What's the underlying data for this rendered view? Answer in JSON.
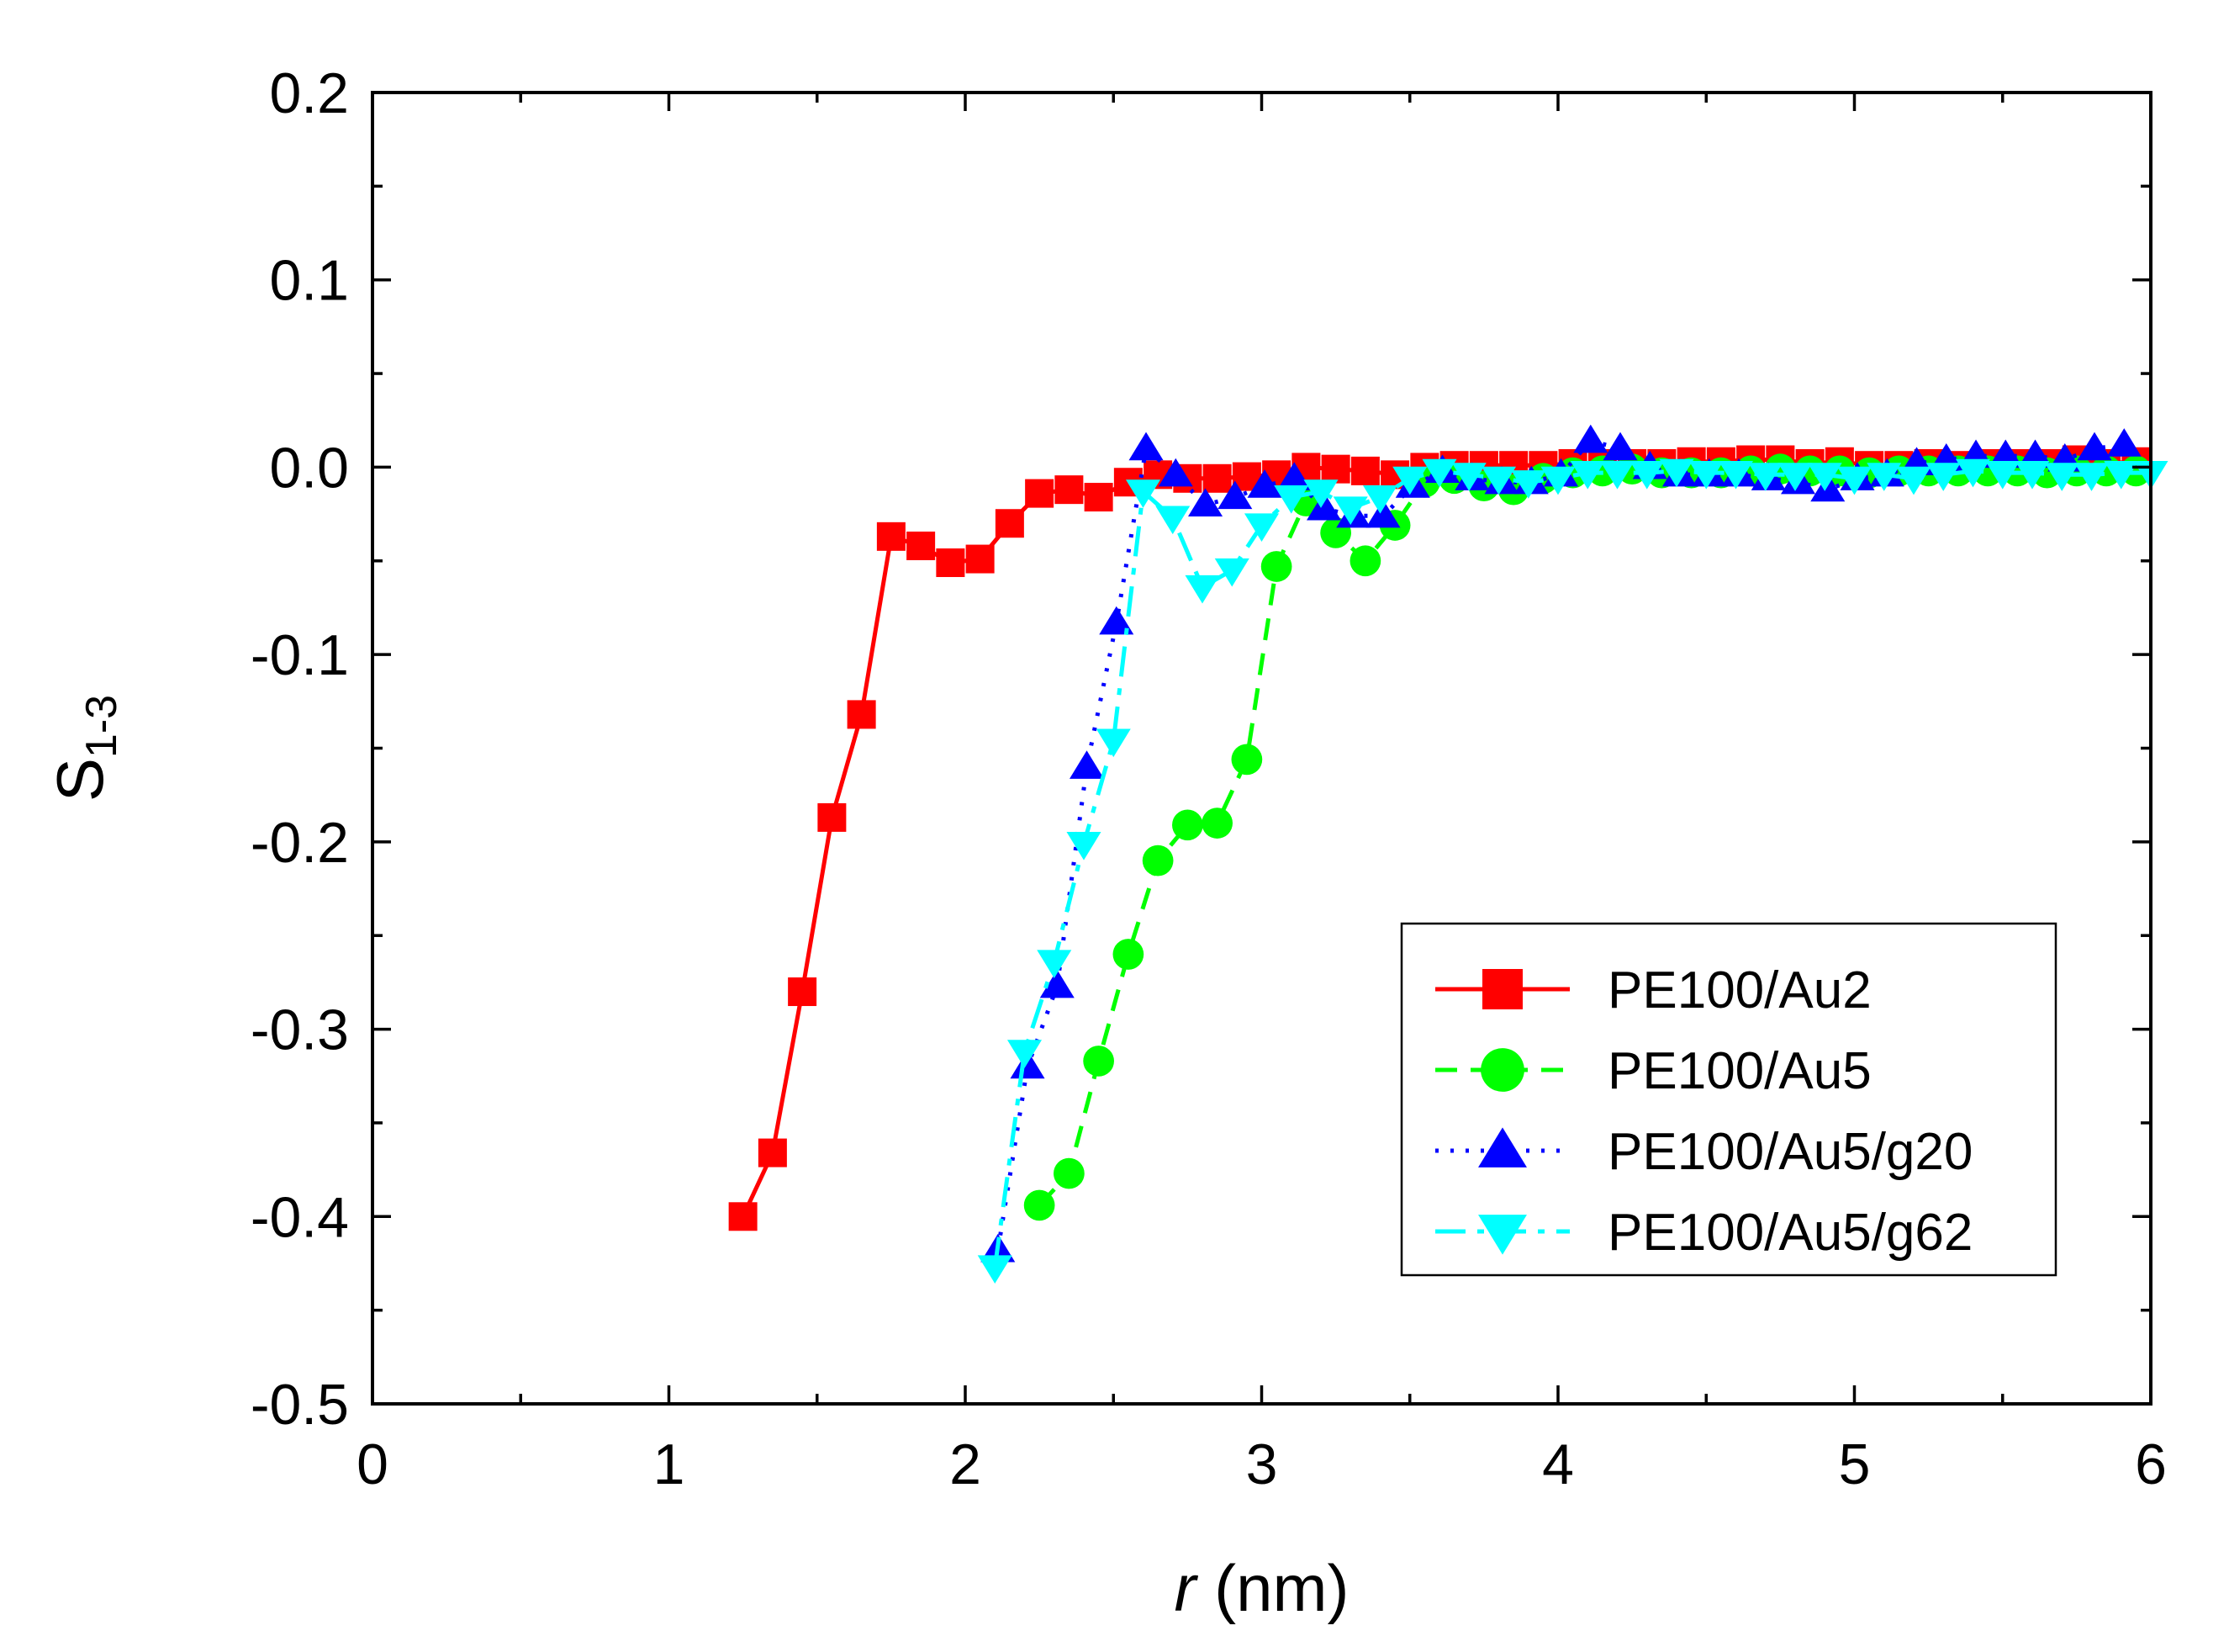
{
  "chart_data": {
    "type": "line",
    "title": "",
    "xlabel_italic": "r",
    "xlabel_rest": " (nm)",
    "ylabel_main": "S",
    "ylabel_sub": "1-3",
    "xlim": [
      0,
      6
    ],
    "ylim": [
      -0.5,
      0.2
    ],
    "xticks": [
      0,
      1,
      2,
      3,
      4,
      5,
      6
    ],
    "xtick_labels": [
      "0",
      "1",
      "2",
      "3",
      "4",
      "5",
      "6"
    ],
    "yticks": [
      0.2,
      0.1,
      0.0,
      -0.1,
      -0.2,
      -0.3,
      -0.4,
      -0.5
    ],
    "ytick_labels": [
      "0.2",
      "0.1",
      "0.0",
      "-0.1",
      "-0.2",
      "-0.3",
      "-0.4",
      "-0.5"
    ],
    "legend_position": "lower-right",
    "series": [
      {
        "name": "PE100/Au2",
        "color": "#ff0000",
        "marker": "square",
        "dash": "",
        "x": [
          1.25,
          1.35,
          1.45,
          1.55,
          1.65,
          1.75,
          1.85,
          1.95,
          2.05,
          2.15,
          2.25,
          2.35,
          2.45,
          2.55,
          2.65,
          2.75,
          2.85,
          2.95,
          3.05,
          3.15,
          3.25,
          3.35,
          3.45,
          3.55,
          3.65,
          3.75,
          3.85,
          3.95,
          4.05,
          4.15,
          4.25,
          4.35,
          4.45,
          4.55,
          4.65,
          4.75,
          4.85,
          4.95,
          5.05,
          5.15,
          5.25,
          5.35,
          5.45,
          5.55,
          5.65,
          5.75,
          5.85,
          5.95
        ],
        "y": [
          -0.4,
          -0.366,
          -0.28,
          -0.187,
          -0.132,
          -0.037,
          -0.042,
          -0.051,
          -0.049,
          -0.03,
          -0.014,
          -0.012,
          -0.016,
          -0.008,
          -0.004,
          -0.006,
          -0.006,
          -0.005,
          -0.004,
          0.0,
          -0.001,
          -0.002,
          -0.004,
          0.0,
          0.001,
          0.001,
          0.001,
          0.001,
          0.002,
          0.002,
          0.002,
          0.002,
          0.003,
          0.003,
          0.004,
          0.004,
          0.002,
          0.003,
          0.001,
          0.001,
          0.002,
          0.001,
          0.002,
          0.002,
          0.002,
          0.004,
          0.002,
          0.003
        ]
      },
      {
        "name": "PE100/Au5",
        "color": "#00ff00",
        "marker": "circle",
        "dash": "26,16",
        "x": [
          2.25,
          2.35,
          2.45,
          2.55,
          2.65,
          2.75,
          2.85,
          2.95,
          3.05,
          3.15,
          3.25,
          3.35,
          3.45,
          3.55,
          3.65,
          3.75,
          3.85,
          3.95,
          4.05,
          4.15,
          4.25,
          4.35,
          4.45,
          4.55,
          4.65,
          4.75,
          4.85,
          4.95,
          5.05,
          5.15,
          5.25,
          5.35,
          5.45,
          5.55,
          5.65,
          5.75,
          5.85,
          5.95
        ],
        "y": [
          -0.394,
          -0.377,
          -0.317,
          -0.26,
          -0.21,
          -0.191,
          -0.19,
          -0.156,
          -0.053,
          -0.018,
          -0.035,
          -0.05,
          -0.031,
          -0.008,
          -0.006,
          -0.01,
          -0.012,
          -0.006,
          -0.003,
          -0.002,
          -0.001,
          -0.003,
          -0.003,
          -0.003,
          -0.002,
          -0.001,
          -0.002,
          -0.002,
          -0.003,
          -0.002,
          -0.002,
          -0.002,
          -0.002,
          -0.002,
          -0.003,
          -0.002,
          -0.002,
          -0.002
        ]
      },
      {
        "name": "PE100/Au5/g20",
        "color": "#0000ff",
        "marker": "triangle-up",
        "dash": "4,14",
        "x": [
          2.11,
          2.21,
          2.31,
          2.41,
          2.51,
          2.61,
          2.71,
          2.81,
          2.91,
          3.01,
          3.11,
          3.21,
          3.31,
          3.41,
          3.51,
          3.61,
          3.71,
          3.81,
          3.91,
          4.01,
          4.11,
          4.21,
          4.31,
          4.41,
          4.51,
          4.61,
          4.71,
          4.81,
          4.91,
          5.01,
          5.11,
          5.21,
          5.31,
          5.41,
          5.51,
          5.61,
          5.71,
          5.81,
          5.91
        ],
        "y": [
          -0.418,
          -0.32,
          -0.277,
          -0.16,
          -0.083,
          0.01,
          -0.004,
          -0.02,
          -0.016,
          -0.01,
          -0.006,
          -0.022,
          -0.026,
          -0.026,
          -0.01,
          -0.002,
          -0.006,
          -0.008,
          -0.008,
          -0.004,
          0.014,
          0.01,
          0.0,
          -0.004,
          -0.004,
          -0.004,
          -0.006,
          -0.008,
          -0.012,
          -0.006,
          -0.004,
          0.002,
          0.004,
          0.006,
          0.006,
          0.006,
          0.004,
          0.01,
          0.012
        ]
      },
      {
        "name": "PE100/Au5/g62",
        "color": "#00ffff",
        "marker": "triangle-down",
        "dash": "36,14,8,14",
        "x": [
          2.1,
          2.2,
          2.3,
          2.4,
          2.5,
          2.6,
          2.7,
          2.8,
          2.9,
          3.0,
          3.1,
          3.2,
          3.3,
          3.4,
          3.5,
          3.6,
          3.7,
          3.8,
          3.9,
          4.0,
          4.1,
          4.2,
          4.3,
          4.4,
          4.5,
          4.6,
          4.7,
          4.8,
          4.9,
          5.0,
          5.1,
          5.2,
          5.3,
          5.4,
          5.5,
          5.6,
          5.7,
          5.8,
          5.9,
          6.0
        ],
        "y": [
          -0.427,
          -0.312,
          -0.264,
          -0.201,
          -0.146,
          -0.013,
          -0.027,
          -0.064,
          -0.055,
          -0.031,
          -0.016,
          -0.013,
          -0.022,
          -0.016,
          -0.006,
          -0.002,
          -0.004,
          -0.006,
          -0.008,
          -0.006,
          -0.003,
          -0.003,
          -0.003,
          -0.002,
          -0.003,
          -0.003,
          -0.004,
          -0.004,
          -0.004,
          -0.006,
          -0.004,
          -0.006,
          -0.004,
          -0.002,
          -0.003,
          -0.003,
          -0.004,
          -0.004,
          -0.003,
          -0.003
        ]
      }
    ]
  }
}
